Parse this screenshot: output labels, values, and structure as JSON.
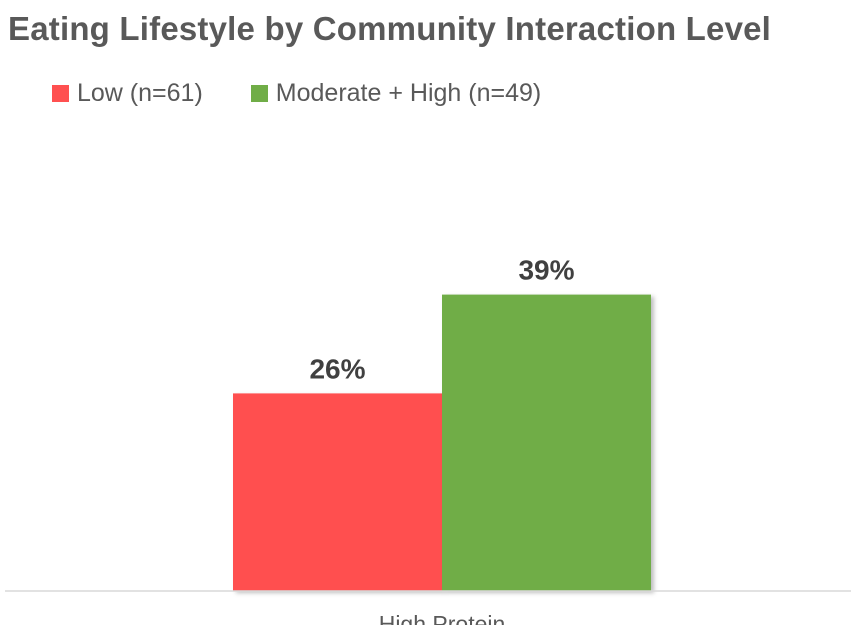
{
  "chart_data": {
    "type": "bar",
    "title": "Eating Lifestyle by Community Interaction Level",
    "xlabel": "",
    "ylabel": "",
    "categories": [
      "High Protein"
    ],
    "series": [
      {
        "name": "Low (n=61)",
        "values": [
          26
        ],
        "labels": [
          "26%"
        ],
        "color": "#FF5050"
      },
      {
        "name": "Moderate + High (n=49)",
        "values": [
          39
        ],
        "labels": [
          "39%"
        ],
        "color": "#70AD47"
      }
    ],
    "ylim": [
      0,
      60
    ],
    "grid": false,
    "legend": "top-left"
  }
}
